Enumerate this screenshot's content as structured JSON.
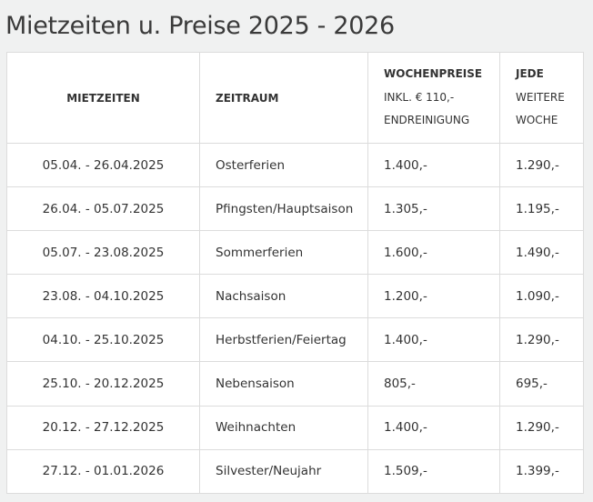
{
  "title": "Mietzeiten u. Preise 2025 - 2026",
  "table": {
    "headers": {
      "mietzeiten": "MIETZEITEN",
      "zeitraum": "ZEITRAUM",
      "wochenpreise": {
        "line1": "WOCHENPREISE",
        "line2": "INKL. € 110,-",
        "line3": "ENDREINIGUNG"
      },
      "jede_weitere_woche": {
        "line1": "JEDE",
        "line2": "WEITERE",
        "line3": "WOCHE"
      }
    },
    "rows": [
      {
        "mietzeit": "05.04. - 26.04.2025",
        "zeitraum": "Osterferien",
        "wochenpreis": "1.400,-",
        "weitere_woche": "1.290,-"
      },
      {
        "mietzeit": "26.04. - 05.07.2025",
        "zeitraum": "Pfingsten/Hauptsaison",
        "wochenpreis": "1.305,-",
        "weitere_woche": "1.195,-"
      },
      {
        "mietzeit": "05.07. - 23.08.2025",
        "zeitraum": "Sommerferien",
        "wochenpreis": "1.600,-",
        "weitere_woche": "1.490,-"
      },
      {
        "mietzeit": "23.08. - 04.10.2025",
        "zeitraum": "Nachsaison",
        "wochenpreis": "1.200,-",
        "weitere_woche": "1.090,-"
      },
      {
        "mietzeit": "04.10. - 25.10.2025",
        "zeitraum": "Herbstferien/Feiertag",
        "wochenpreis": "1.400,-",
        "weitere_woche": "1.290,-"
      },
      {
        "mietzeit": "25.10. - 20.12.2025",
        "zeitraum": "Nebensaison",
        "wochenpreis": "805,-",
        "weitere_woche": "695,-"
      },
      {
        "mietzeit": "20.12. - 27.12.2025",
        "zeitraum": "Weihnachten",
        "wochenpreis": "1.400,-",
        "weitere_woche": "1.290,-"
      },
      {
        "mietzeit": "27.12. - 01.01.2026",
        "zeitraum": "Silvester/Neujahr",
        "wochenpreis": "1.509,-",
        "weitere_woche": "1.399,-"
      }
    ]
  }
}
